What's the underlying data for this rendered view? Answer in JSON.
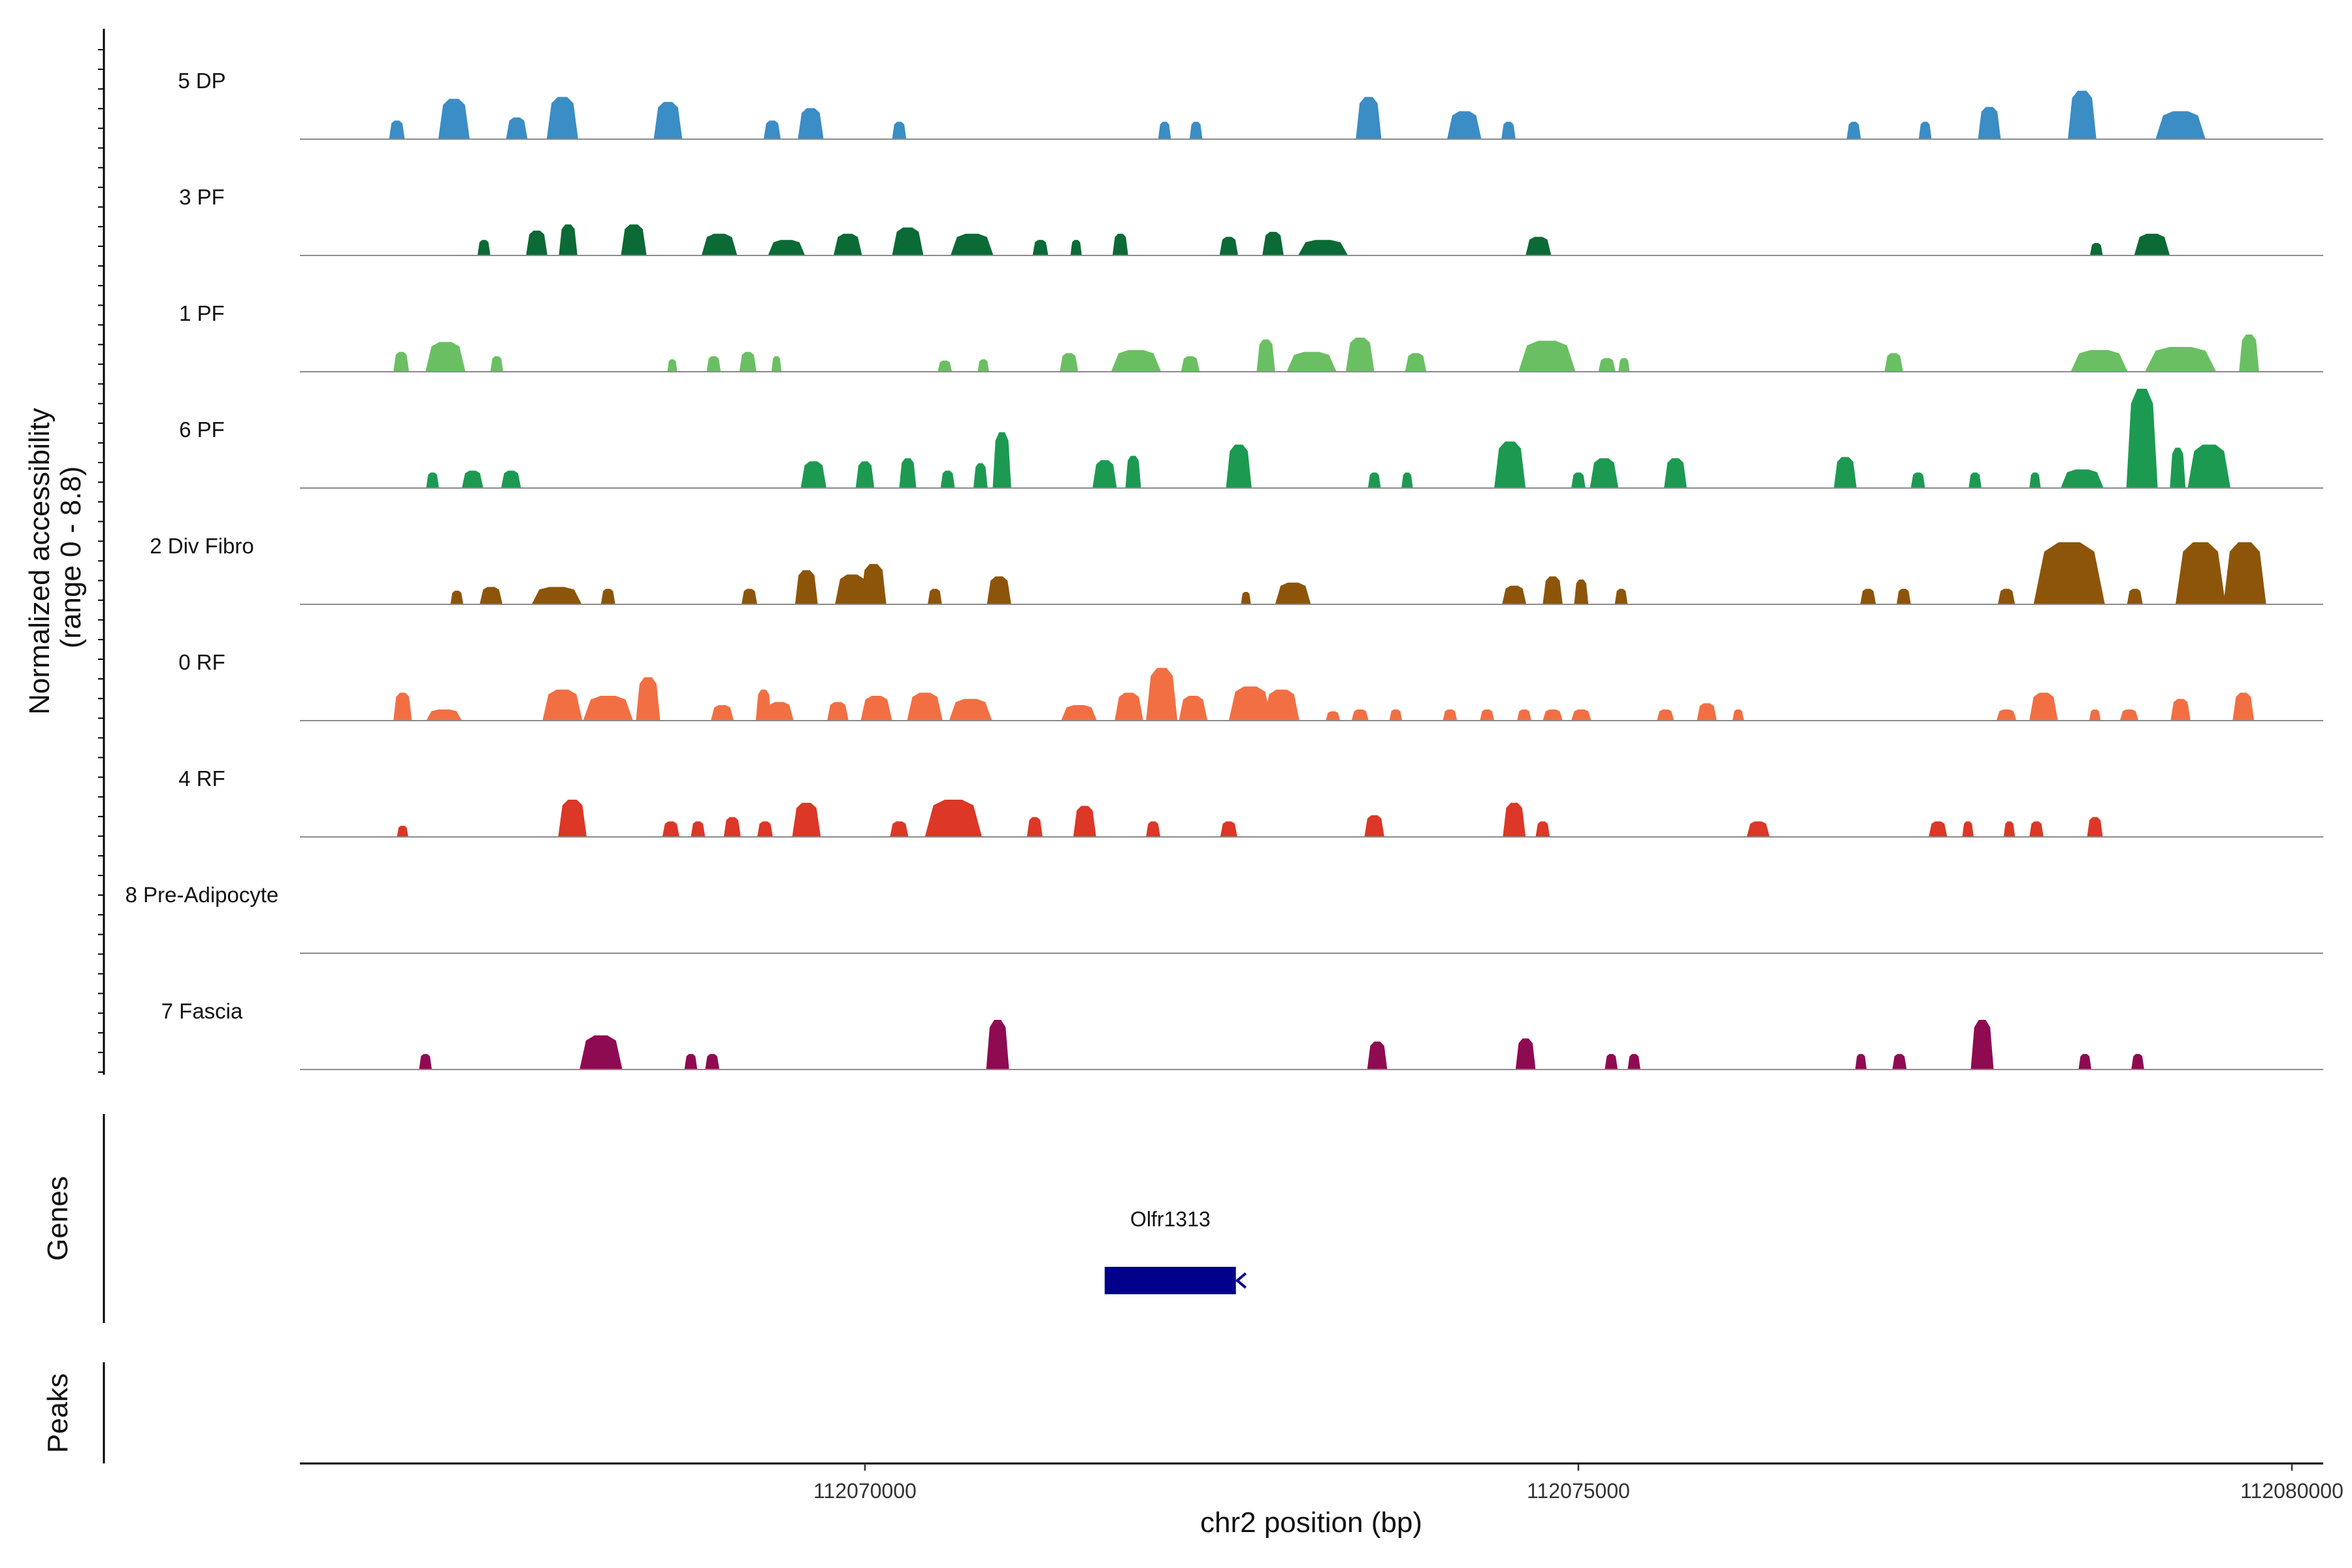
{
  "chart_data": {
    "type": "area",
    "title": "",
    "ylabel": "Normalized accessibility\n(range 0 - 8.8)",
    "ylabel_lines": [
      "Normalized accessibility",
      "(range 0 - 8.8)"
    ],
    "ylim": [
      0,
      8.8
    ],
    "xlabel": "chr2 position (bp)",
    "xlim": [
      112066040,
      112080220
    ],
    "x_ticks": [
      112070000,
      112075000,
      112080000
    ],
    "x_tick_labels": [
      "112070000",
      "112075000",
      "112080000"
    ],
    "tracks": [
      {
        "name": "5 DP",
        "color": "#3a8dc5",
        "peaks": [
          [
            112066720,
            110,
            3.0
          ],
          [
            112067120,
            220,
            6.5
          ],
          [
            112067560,
            150,
            3.5
          ],
          [
            112067880,
            220,
            6.8
          ],
          [
            112068620,
            200,
            6.0
          ],
          [
            112069350,
            120,
            3.0
          ],
          [
            112069620,
            180,
            5.0
          ],
          [
            112070240,
            100,
            2.8
          ],
          [
            112072100,
            90,
            2.8
          ],
          [
            112072320,
            90,
            2.8
          ],
          [
            112073530,
            180,
            6.8
          ],
          [
            112074200,
            240,
            4.5
          ],
          [
            112074510,
            100,
            2.8
          ],
          [
            112076930,
            100,
            2.8
          ],
          [
            112077430,
            90,
            2.8
          ],
          [
            112077880,
            160,
            5.2
          ],
          [
            112078530,
            200,
            7.8
          ],
          [
            112079220,
            350,
            4.5
          ]
        ]
      },
      {
        "name": "3 PF",
        "color": "#0b6a36",
        "peaks": [
          [
            112067330,
            90,
            2.5
          ],
          [
            112067700,
            150,
            4.0
          ],
          [
            112067920,
            130,
            5.0
          ],
          [
            112068380,
            180,
            5.0
          ],
          [
            112068980,
            250,
            3.5
          ],
          [
            112069450,
            260,
            2.5
          ],
          [
            112069880,
            200,
            3.5
          ],
          [
            112070300,
            220,
            4.5
          ],
          [
            112070750,
            300,
            3.5
          ],
          [
            112071230,
            110,
            2.5
          ],
          [
            112071480,
            80,
            2.5
          ],
          [
            112071790,
            110,
            3.5
          ],
          [
            112072550,
            130,
            3.0
          ],
          [
            112072860,
            150,
            3.8
          ],
          [
            112073210,
            350,
            2.5
          ],
          [
            112074720,
            180,
            3.0
          ],
          [
            112078630,
            90,
            2.0
          ],
          [
            112079020,
            250,
            3.5
          ]
        ]
      },
      {
        "name": "1 PF",
        "color": "#6abf63",
        "peaks": [
          [
            112066750,
            110,
            3.2
          ],
          [
            112067060,
            280,
            4.8
          ],
          [
            112067420,
            90,
            2.5
          ],
          [
            112068650,
            70,
            2.0
          ],
          [
            112068940,
            100,
            2.5
          ],
          [
            112069180,
            120,
            3.2
          ],
          [
            112069380,
            70,
            2.5
          ],
          [
            112070560,
            100,
            1.8
          ],
          [
            112070830,
            80,
            2.0
          ],
          [
            112071430,
            130,
            3.0
          ],
          [
            112071900,
            350,
            3.5
          ],
          [
            112072280,
            130,
            2.5
          ],
          [
            112072810,
            130,
            5.2
          ],
          [
            112073130,
            350,
            3.2
          ],
          [
            112073470,
            200,
            5.5
          ],
          [
            112073860,
            150,
            3.0
          ],
          [
            112074780,
            400,
            5.0
          ],
          [
            112075200,
            120,
            2.2
          ],
          [
            112075320,
            80,
            2.2
          ],
          [
            112077210,
            130,
            3.0
          ],
          [
            112078650,
            400,
            3.5
          ],
          [
            112079220,
            500,
            4.0
          ],
          [
            112079700,
            140,
            6.0
          ]
        ]
      },
      {
        "name": "6 PF",
        "color": "#1c9a52",
        "peaks": [
          [
            112066970,
            90,
            2.5
          ],
          [
            112067250,
            150,
            2.8
          ],
          [
            112067520,
            140,
            2.8
          ],
          [
            112069640,
            180,
            4.3
          ],
          [
            112070000,
            130,
            4.3
          ],
          [
            112070300,
            120,
            4.8
          ],
          [
            112070580,
            100,
            2.8
          ],
          [
            112070810,
            100,
            4.0
          ],
          [
            112070960,
            130,
            9.0
          ],
          [
            112071680,
            170,
            4.5
          ],
          [
            112071880,
            110,
            5.2
          ],
          [
            112072620,
            180,
            7.0
          ],
          [
            112073570,
            90,
            2.5
          ],
          [
            112073800,
            80,
            2.5
          ],
          [
            112074520,
            220,
            7.5
          ],
          [
            112075000,
            100,
            2.5
          ],
          [
            112075180,
            200,
            4.8
          ],
          [
            112075680,
            160,
            4.8
          ],
          [
            112076870,
            160,
            5.0
          ],
          [
            112077380,
            100,
            2.5
          ],
          [
            112077780,
            90,
            2.5
          ],
          [
            112078200,
            80,
            2.5
          ],
          [
            112078530,
            300,
            3.0
          ],
          [
            112078950,
            220,
            16.0
          ],
          [
            112079200,
            110,
            6.5
          ],
          [
            112079420,
            300,
            7.0
          ]
        ]
      },
      {
        "name": "2 Div Fibro",
        "color": "#8d5509",
        "peaks": [
          [
            112067140,
            90,
            2.2
          ],
          [
            112067380,
            160,
            2.8
          ],
          [
            112067840,
            350,
            2.8
          ],
          [
            112068200,
            100,
            2.5
          ],
          [
            112069190,
            110,
            2.5
          ],
          [
            112069590,
            160,
            5.5
          ],
          [
            112069910,
            240,
            4.8
          ],
          [
            112070060,
            180,
            6.5
          ],
          [
            112070080,
            90,
            2.5
          ],
          [
            112070490,
            100,
            2.5
          ],
          [
            112070940,
            170,
            4.5
          ],
          [
            112072670,
            70,
            2.0
          ],
          [
            112073000,
            250,
            3.5
          ],
          [
            112074550,
            170,
            3.0
          ],
          [
            112074820,
            140,
            4.5
          ],
          [
            112075020,
            100,
            4.0
          ],
          [
            112075300,
            90,
            2.5
          ],
          [
            112077030,
            110,
            2.5
          ],
          [
            112077280,
            100,
            2.5
          ],
          [
            112078000,
            120,
            2.5
          ],
          [
            112078440,
            500,
            10.0
          ],
          [
            112078900,
            110,
            2.5
          ],
          [
            112079360,
            350,
            10.0
          ],
          [
            112079670,
            300,
            10.0
          ]
        ]
      },
      {
        "name": "0 RF",
        "color": "#f26f43",
        "peaks": [
          [
            112066760,
            130,
            4.5
          ],
          [
            112067050,
            250,
            1.8
          ],
          [
            112067880,
            280,
            5.0
          ],
          [
            112068200,
            350,
            4.0
          ],
          [
            112068480,
            170,
            7.0
          ],
          [
            112069000,
            160,
            2.5
          ],
          [
            112069290,
            110,
            5.0
          ],
          [
            112069400,
            200,
            3.0
          ],
          [
            112069810,
            150,
            3.0
          ],
          [
            112070080,
            220,
            4.0
          ],
          [
            112070420,
            250,
            4.5
          ],
          [
            112070740,
            300,
            3.5
          ],
          [
            112071500,
            250,
            2.5
          ],
          [
            112071850,
            200,
            4.5
          ],
          [
            112072080,
            220,
            8.5
          ],
          [
            112072300,
            200,
            4.0
          ],
          [
            112072700,
            300,
            5.5
          ],
          [
            112072920,
            250,
            5.0
          ],
          [
            112073280,
            100,
            1.5
          ],
          [
            112073470,
            120,
            1.8
          ],
          [
            112073720,
            90,
            1.8
          ],
          [
            112074100,
            100,
            1.8
          ],
          [
            112074360,
            100,
            1.8
          ],
          [
            112074620,
            100,
            1.8
          ],
          [
            112074820,
            140,
            1.8
          ],
          [
            112075020,
            140,
            1.8
          ],
          [
            112075610,
            120,
            1.8
          ],
          [
            112075900,
            140,
            2.8
          ],
          [
            112076120,
            80,
            1.8
          ],
          [
            112078000,
            140,
            1.8
          ],
          [
            112078260,
            200,
            4.5
          ],
          [
            112078620,
            80,
            1.8
          ],
          [
            112078860,
            130,
            1.8
          ],
          [
            112079220,
            140,
            3.5
          ],
          [
            112079660,
            150,
            4.5
          ]
        ]
      },
      {
        "name": "4 RF",
        "color": "#dc3727",
        "peaks": [
          [
            112066760,
            80,
            1.8
          ],
          [
            112067950,
            200,
            6.0
          ],
          [
            112068640,
            120,
            2.5
          ],
          [
            112068830,
            100,
            2.5
          ],
          [
            112069070,
            120,
            3.2
          ],
          [
            112069300,
            110,
            2.5
          ],
          [
            112069590,
            200,
            5.5
          ],
          [
            112070240,
            130,
            2.5
          ],
          [
            112070620,
            400,
            6.0
          ],
          [
            112071190,
            110,
            3.2
          ],
          [
            112071540,
            160,
            5.0
          ],
          [
            112072020,
            100,
            2.5
          ],
          [
            112072550,
            120,
            2.5
          ],
          [
            112073570,
            140,
            3.5
          ],
          [
            112074550,
            160,
            5.5
          ],
          [
            112074750,
            100,
            2.5
          ],
          [
            112076260,
            160,
            2.5
          ],
          [
            112077520,
            130,
            2.5
          ],
          [
            112077730,
            80,
            2.5
          ],
          [
            112078020,
            80,
            2.5
          ],
          [
            112078210,
            100,
            2.5
          ],
          [
            112078620,
            110,
            3.2
          ]
        ]
      },
      {
        "name": "8 Pre-Adipocyte",
        "color": "#555555",
        "peaks": []
      },
      {
        "name": "7 Fascia",
        "color": "#8e0b52",
        "peaks": [
          [
            112066920,
            90,
            2.5
          ],
          [
            112068150,
            300,
            5.5
          ],
          [
            112068780,
            90,
            2.5
          ],
          [
            112068930,
            100,
            2.5
          ],
          [
            112070930,
            160,
            8.0
          ],
          [
            112073590,
            140,
            4.5
          ],
          [
            112074630,
            140,
            5.0
          ],
          [
            112075230,
            90,
            2.5
          ],
          [
            112075390,
            90,
            2.5
          ],
          [
            112076980,
            80,
            2.5
          ],
          [
            112077250,
            100,
            2.5
          ],
          [
            112077830,
            160,
            8.0
          ],
          [
            112078550,
            90,
            2.5
          ],
          [
            112078920,
            90,
            2.5
          ]
        ]
      }
    ],
    "genes_label": "Genes",
    "genes": [
      {
        "name": "Olfr1313",
        "start": 112071680,
        "end": 112072600,
        "strand": "-",
        "color": "#00008b"
      }
    ],
    "peaks_label": "Peaks",
    "peak_regions": []
  }
}
